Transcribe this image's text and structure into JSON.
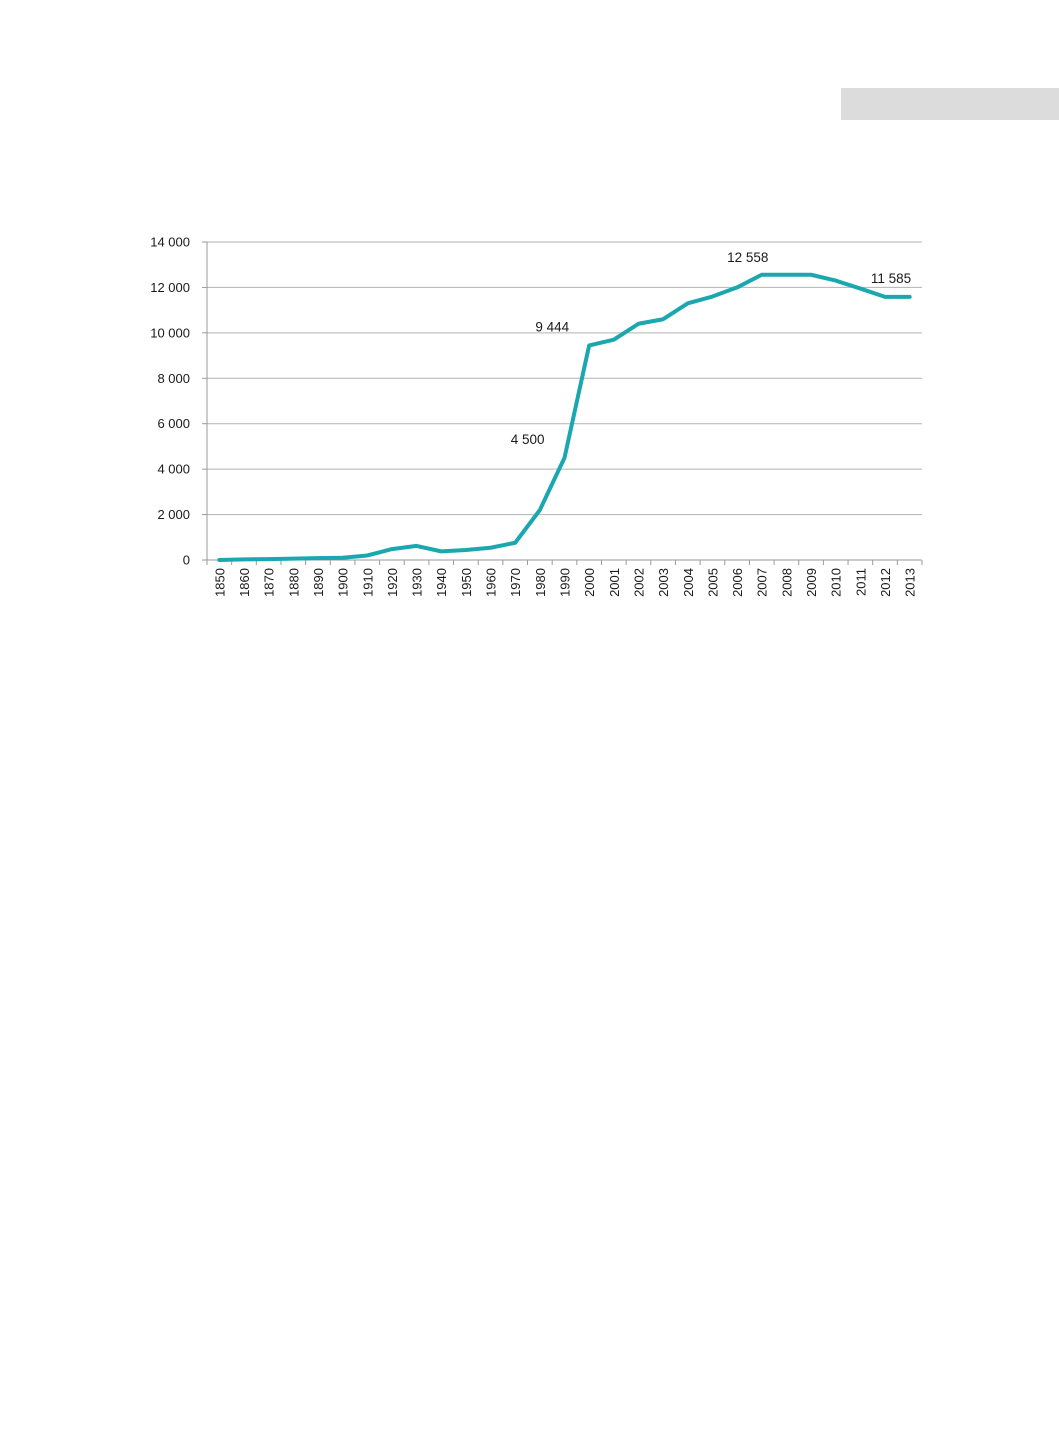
{
  "chart_data": {
    "type": "line",
    "title": "",
    "xlabel": "",
    "ylabel": "",
    "ylim": [
      0,
      14000
    ],
    "yticks": [
      0,
      2000,
      4000,
      6000,
      8000,
      10000,
      12000,
      14000
    ],
    "ytick_labels": [
      "0",
      "2 000",
      "4 000",
      "6 000",
      "8 000",
      "10 000",
      "12 000",
      "14 000"
    ],
    "grid": true,
    "categories": [
      "1850",
      "1860",
      "1870",
      "1880",
      "1890",
      "1900",
      "1910",
      "1920",
      "1930",
      "1940",
      "1950",
      "1960",
      "1970",
      "1980",
      "1990",
      "2000",
      "2001",
      "2002",
      "2003",
      "2004",
      "2005",
      "2006",
      "2007",
      "2008",
      "2009",
      "2010",
      "2011",
      "2012",
      "2013"
    ],
    "series": [
      {
        "color": "#1aa7b0",
        "values": [
          0,
          30,
          40,
          60,
          80,
          100,
          200,
          480,
          620,
          380,
          440,
          540,
          760,
          2200,
          4500,
          9444,
          9700,
          10400,
          10600,
          11300,
          11600,
          12000,
          12558,
          12558,
          12558,
          12300,
          11950,
          11585,
          11585
        ]
      }
    ],
    "annotations": [
      {
        "text": "4 500",
        "category": "1990",
        "value": 4500
      },
      {
        "text": "9 444",
        "category": "2000",
        "value": 9444
      },
      {
        "text": "12 558",
        "category": "2007",
        "value": 12558
      },
      {
        "text": "11 585",
        "category": "2012",
        "value": 11585
      }
    ]
  }
}
